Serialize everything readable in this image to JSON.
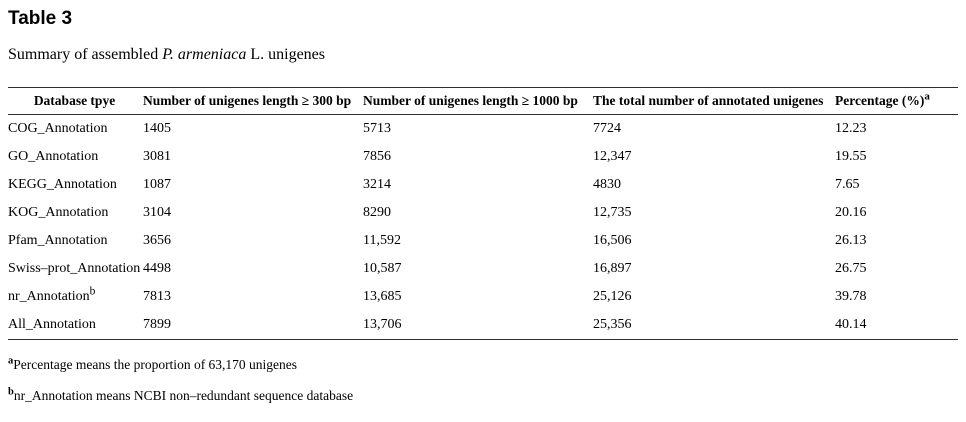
{
  "title": "Table 3",
  "caption": {
    "pre": "Summary of assembled ",
    "italic": "P. armeniaca",
    "post": " L. unigenes"
  },
  "table": {
    "headers": [
      {
        "label": "Database tpye"
      },
      {
        "label": "Number of unigenes length ≥ 300 bp"
      },
      {
        "label": "Number of unigenes length ≥ 1000 bp"
      },
      {
        "label": "The total number of annotated unigenes"
      },
      {
        "label": "Percentage (%)",
        "sup": "a"
      }
    ],
    "rows": [
      {
        "database": "COG_Annotation",
        "len300": "1405",
        "len1000": "5713",
        "total": "7724",
        "percent": "12.23"
      },
      {
        "database": "GO_Annotation",
        "len300": "3081",
        "len1000": "7856",
        "total": "12,347",
        "percent": "19.55"
      },
      {
        "database": "KEGG_Annotation",
        "len300": "1087",
        "len1000": "3214",
        "total": "4830",
        "percent": "7.65"
      },
      {
        "database": "KOG_Annotation",
        "len300": "3104",
        "len1000": "8290",
        "total": "12,735",
        "percent": "20.16"
      },
      {
        "database": "Pfam_Annotation",
        "len300": "3656",
        "len1000": "11,592",
        "total": "16,506",
        "percent": "26.13"
      },
      {
        "database": "Swiss–prot_Annotation",
        "len300": "4498",
        "len1000": "10,587",
        "total": "16,897",
        "percent": "26.75"
      },
      {
        "database": "nr_Annotation",
        "sup": "b",
        "len300": "7813",
        "len1000": "13,685",
        "total": "25,126",
        "percent": "39.78"
      },
      {
        "database": "All_Annotation",
        "len300": "7899",
        "len1000": "13,706",
        "total": "25,356",
        "percent": "40.14"
      }
    ]
  },
  "footnotes": [
    {
      "marker": "a",
      "text": "Percentage means the proportion of 63,170 unigenes"
    },
    {
      "marker": "b",
      "text": "nr_Annotation means NCBI non–redundant sequence database"
    }
  ]
}
